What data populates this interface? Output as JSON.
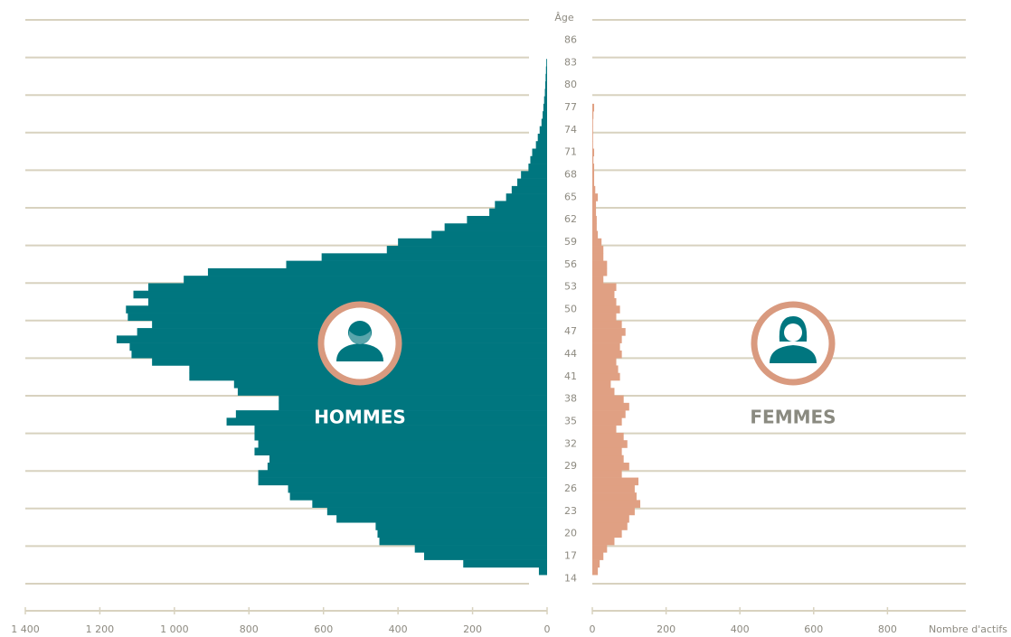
{
  "chart_data": {
    "type": "bar",
    "orientation": "horizontal",
    "ylabel": "Âge",
    "xlabel": "Nombre d'actifs",
    "y": [
      15,
      16,
      17,
      18,
      19,
      20,
      21,
      22,
      23,
      24,
      25,
      26,
      27,
      28,
      29,
      30,
      31,
      32,
      33,
      34,
      35,
      36,
      37,
      38,
      39,
      40,
      41,
      42,
      43,
      44,
      45,
      46,
      47,
      48,
      49,
      50,
      51,
      52,
      53,
      54,
      55,
      56,
      57,
      58,
      59,
      60,
      61,
      62,
      63,
      64,
      65,
      66,
      67,
      68,
      69,
      70,
      71,
      72,
      73,
      74,
      75,
      76,
      77,
      78,
      79,
      80,
      81,
      82,
      83
    ],
    "ylim": [
      11,
      89
    ],
    "yticks": [
      14,
      17,
      20,
      23,
      26,
      29,
      32,
      35,
      38,
      41,
      44,
      47,
      50,
      53,
      56,
      59,
      62,
      65,
      68,
      71,
      74,
      77,
      80,
      83,
      86
    ],
    "xlim": [
      0,
      1400
    ],
    "xticks": [
      {
        "value": 1400,
        "label": "1 400"
      },
      {
        "value": 1200,
        "label": "1 200"
      },
      {
        "value": 1000,
        "label": "1 000"
      },
      800,
      600,
      400,
      200,
      0
    ],
    "x2lim": [
      0,
      1000
    ],
    "x2ticks": [
      0,
      200,
      400,
      600,
      800
    ],
    "series": [
      {
        "name": "HOMMES",
        "color": "#00767f",
        "axis": "x",
        "values": [
          22,
          225,
          330,
          355,
          450,
          455,
          460,
          565,
          590,
          630,
          690,
          695,
          775,
          775,
          750,
          745,
          785,
          775,
          785,
          785,
          860,
          835,
          720,
          720,
          830,
          840,
          960,
          960,
          1060,
          1115,
          1120,
          1155,
          1100,
          1060,
          1125,
          1130,
          1070,
          1110,
          1070,
          975,
          910,
          700,
          605,
          430,
          400,
          310,
          275,
          215,
          155,
          140,
          110,
          95,
          80,
          70,
          50,
          45,
          40,
          30,
          25,
          20,
          15,
          12,
          10,
          8,
          6,
          5,
          4,
          3,
          2
        ]
      },
      {
        "name": "FEMMES",
        "color": "#e0a083",
        "axis": "x2",
        "values": [
          15,
          20,
          30,
          40,
          60,
          80,
          95,
          100,
          115,
          130,
          120,
          115,
          125,
          80,
          100,
          85,
          80,
          95,
          85,
          65,
          80,
          90,
          100,
          85,
          60,
          50,
          75,
          70,
          65,
          80,
          75,
          80,
          90,
          80,
          65,
          75,
          65,
          60,
          65,
          30,
          40,
          40,
          30,
          30,
          25,
          15,
          12,
          12,
          10,
          10,
          15,
          8,
          5,
          5,
          5,
          3,
          5,
          2,
          2,
          2,
          2,
          3,
          5,
          0,
          0,
          0,
          0,
          0,
          0
        ]
      }
    ]
  }
}
